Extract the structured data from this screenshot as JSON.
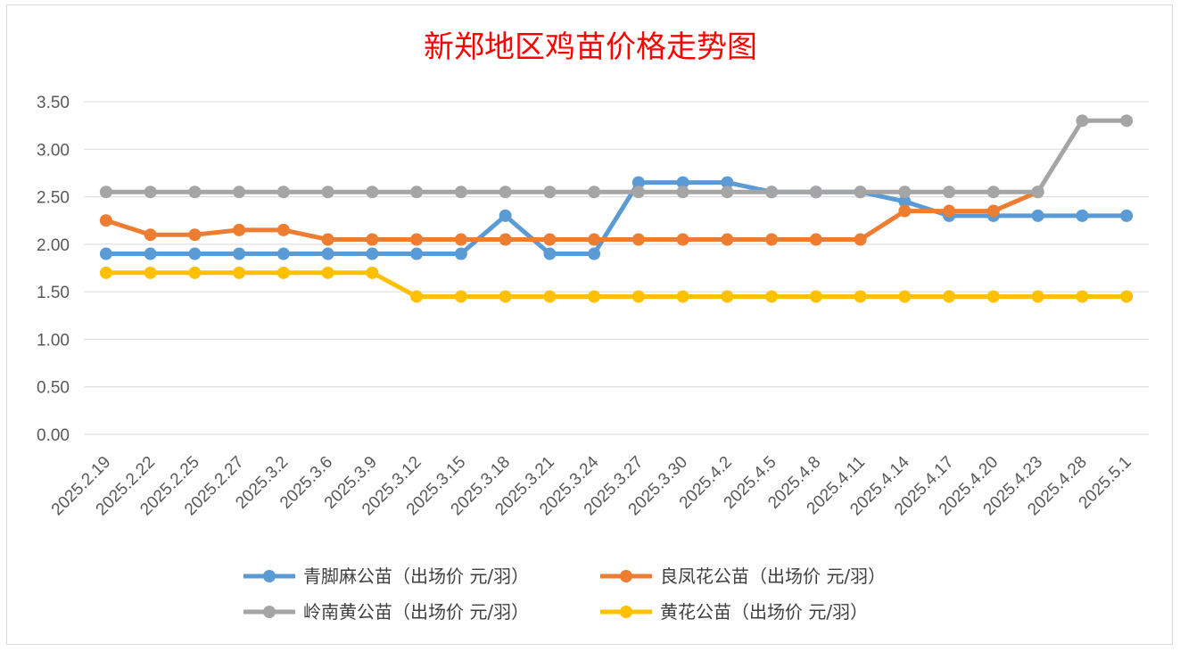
{
  "chart_data": {
    "type": "line",
    "title": "新郑地区鸡苗价格走势图",
    "xlabel": "",
    "ylabel": "",
    "ylim": [
      0,
      3.5
    ],
    "ytick_step": 0.5,
    "ytick_labels": [
      "0.00",
      "0.50",
      "1.00",
      "1.50",
      "2.00",
      "2.50",
      "3.00",
      "3.50"
    ],
    "grid": true,
    "legend_position": "bottom",
    "categories": [
      "2025.2.19",
      "2025.2.22",
      "2025.2.25",
      "2025.2.27",
      "2025.3.2",
      "2025.3.6",
      "2025.3.9",
      "2025.3.12",
      "2025.3.15",
      "2025.3.18",
      "2025.3.21",
      "2025.3.24",
      "2025.3.27",
      "2025.3.30",
      "2025.4.2",
      "2025.4.5",
      "2025.4.8",
      "2025.4.11",
      "2025.4.14",
      "2025.4.17",
      "2025.4.20",
      "2025.4.23",
      "2025.4.28",
      "2025.5.1"
    ],
    "series": [
      {
        "name": "青脚麻公苗（出场价 元/羽）",
        "color": "#5b9bd5",
        "values": [
          1.9,
          1.9,
          1.9,
          1.9,
          1.9,
          1.9,
          1.9,
          1.9,
          1.9,
          2.3,
          1.9,
          1.9,
          2.65,
          2.65,
          2.65,
          2.55,
          2.55,
          2.55,
          2.45,
          2.3,
          2.3,
          2.3,
          2.3,
          2.3
        ]
      },
      {
        "name": "良凤花公苗（出场价 元/羽）",
        "color": "#ed7d31",
        "values": [
          2.25,
          2.1,
          2.1,
          2.15,
          2.15,
          2.05,
          2.05,
          2.05,
          2.05,
          2.05,
          2.05,
          2.05,
          2.05,
          2.05,
          2.05,
          2.05,
          2.05,
          2.05,
          2.35,
          2.35,
          2.35,
          2.55,
          null,
          null
        ]
      },
      {
        "name": "岭南黄公苗（出场价 元/羽）",
        "color": "#a5a5a5",
        "values": [
          2.55,
          2.55,
          2.55,
          2.55,
          2.55,
          2.55,
          2.55,
          2.55,
          2.55,
          2.55,
          2.55,
          2.55,
          2.55,
          2.55,
          2.55,
          2.55,
          2.55,
          2.55,
          2.55,
          2.55,
          2.55,
          2.55,
          3.3,
          3.3
        ]
      },
      {
        "name": "黄花公苗（出场价 元/羽）",
        "color": "#ffc000",
        "values": [
          1.7,
          1.7,
          1.7,
          1.7,
          1.7,
          1.7,
          1.7,
          1.45,
          1.45,
          1.45,
          1.45,
          1.45,
          1.45,
          1.45,
          1.45,
          1.45,
          1.45,
          1.45,
          1.45,
          1.45,
          1.45,
          1.45,
          1.45,
          1.45
        ]
      }
    ]
  },
  "colors": {
    "title": "#ff0000",
    "grid": "#d9d9d9",
    "text": "#595959"
  }
}
